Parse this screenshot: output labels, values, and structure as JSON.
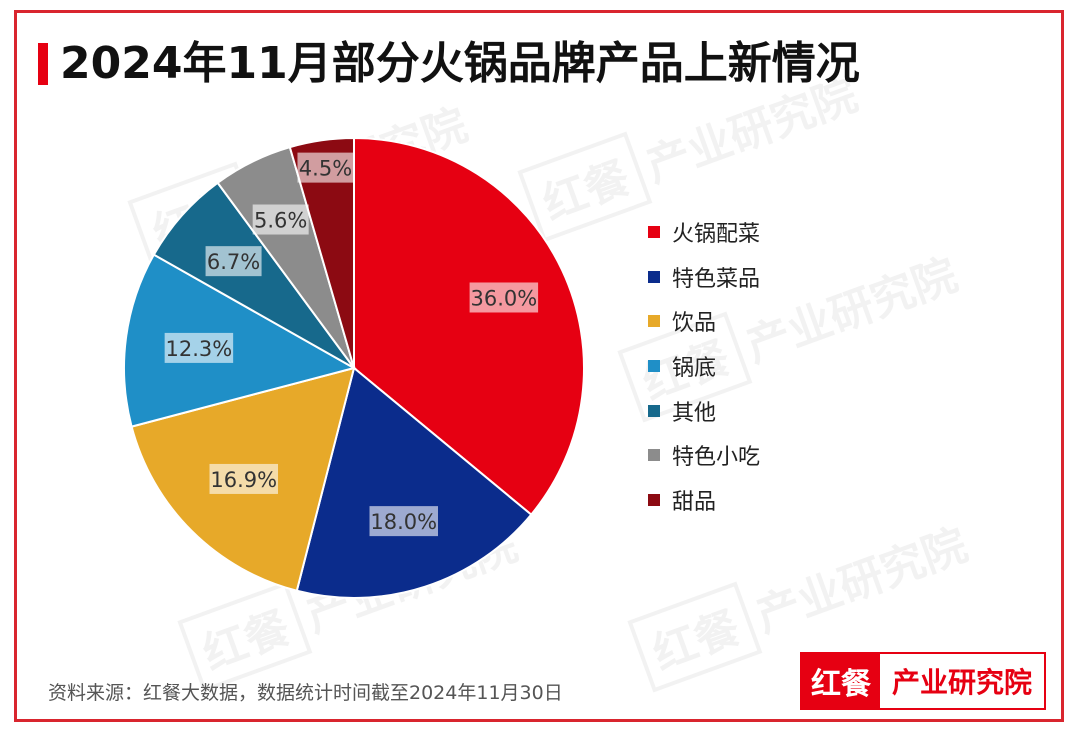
{
  "title": "2024年11月部分火锅品牌产品上新情况",
  "source": "资料来源：红餐大数据，数据统计时间截至2024年11月30日",
  "logo": {
    "mark": "红餐",
    "text": "产业研究院"
  },
  "watermark": {
    "mark": "红餐",
    "text": "产业研究院"
  },
  "colors": {
    "accent": "#e60012",
    "frame": "#d9252e"
  },
  "legend": {
    "items": [
      {
        "label": "火锅配菜",
        "color": "#e60012"
      },
      {
        "label": "特色菜品",
        "color": "#0b2c8c"
      },
      {
        "label": "饮品",
        "color": "#e7a929"
      },
      {
        "label": "锅底",
        "color": "#1f8fc7"
      },
      {
        "label": "其他",
        "color": "#17698c"
      },
      {
        "label": "特色小吃",
        "color": "#8c8c8c"
      },
      {
        "label": "甜品",
        "color": "#8c0a12"
      }
    ]
  },
  "chart_data": {
    "type": "pie",
    "title": "2024年11月部分火锅品牌产品上新情况",
    "categories": [
      "火锅配菜",
      "特色菜品",
      "饮品",
      "锅底",
      "其他",
      "特色小吃",
      "甜品"
    ],
    "values": [
      36.0,
      18.0,
      16.9,
      12.3,
      6.7,
      5.6,
      4.5
    ],
    "labels": [
      "36.0%",
      "18.0%",
      "16.9%",
      "12.3%",
      "6.7%",
      "5.6%",
      "4.5%"
    ],
    "unit": "%",
    "colors": [
      "#e60012",
      "#0b2c8c",
      "#e7a929",
      "#1f8fc7",
      "#17698c",
      "#8c8c8c",
      "#8c0a12"
    ],
    "start": "12 o'clock",
    "direction": "clockwise",
    "legend_position": "right"
  }
}
